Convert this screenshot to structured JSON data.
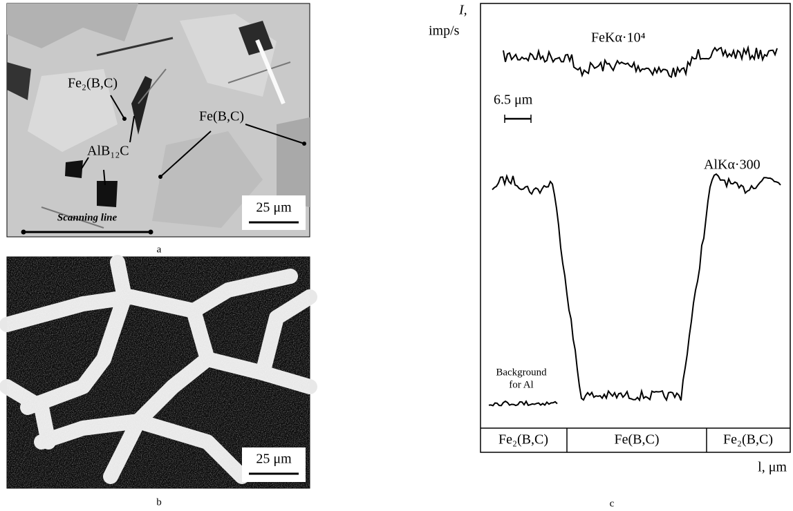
{
  "panel_a": {
    "labels": {
      "fe2bc": "Fe₂(B,C)",
      "febc": "Fe(B,C)",
      "alb12c": "AlB₁₂C"
    },
    "scale_bar": "25 μm",
    "scanning_line": "Scanning line",
    "caption": "a"
  },
  "panel_b": {
    "scale_bar": "25 μm",
    "caption": "b"
  },
  "panel_c": {
    "y_axis_label": [
      "I,",
      "imp/s"
    ],
    "fe_trace_label": "FeKα·10⁴",
    "scale_bar": "6.5 μm",
    "al_trace_label": "AlKα·300",
    "background_label": [
      "Background",
      "for Al"
    ],
    "regions": [
      "Fe₂(B,C)",
      "Fe(B,C)",
      "Fe₂(B,C)"
    ],
    "x_axis_label": "l, μm",
    "caption": "c"
  }
}
